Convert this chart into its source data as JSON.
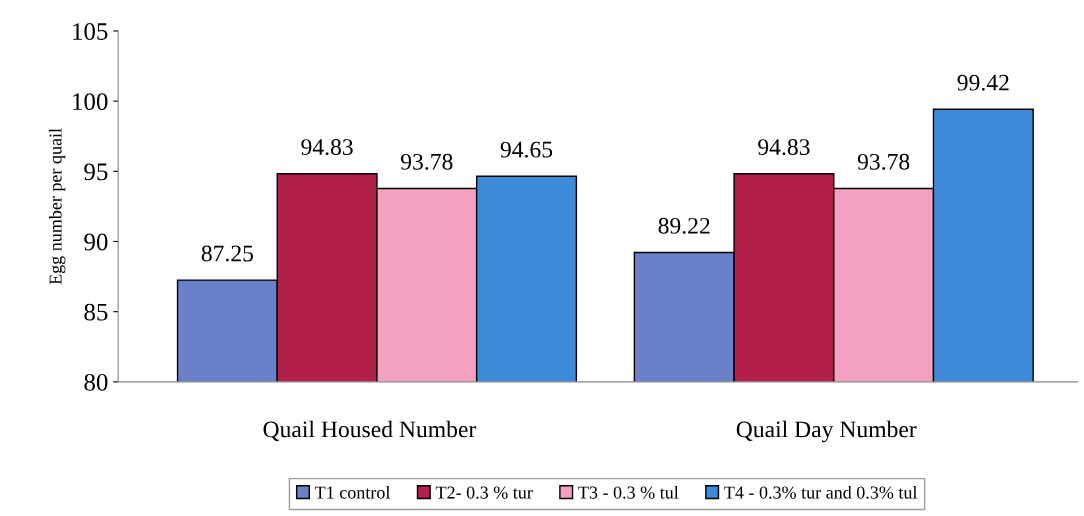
{
  "chart_data": {
    "type": "bar",
    "ylabel": "Egg number per quail",
    "categories": [
      "Quail Housed Number",
      "Quail Day Number"
    ],
    "series": [
      {
        "name": "T1 control",
        "color": "#6a80c8",
        "values": [
          87.25,
          89.22
        ]
      },
      {
        "name": "T2- 0.3 % tur",
        "color": "#b02048",
        "values": [
          94.83,
          94.83
        ]
      },
      {
        "name": "T3 - 0.3 % tul",
        "color": "#f4a0c0",
        "values": [
          93.78,
          93.78
        ]
      },
      {
        "name": "T4 - 0.3% tur and 0.3% tul",
        "color": "#3c8ad8",
        "values": [
          94.65,
          99.42
        ]
      }
    ],
    "ylim": [
      80,
      105
    ],
    "yticks": [
      80,
      85,
      90,
      95,
      100,
      105
    ],
    "data_labels": true,
    "legend": "bottom",
    "grid": false
  }
}
